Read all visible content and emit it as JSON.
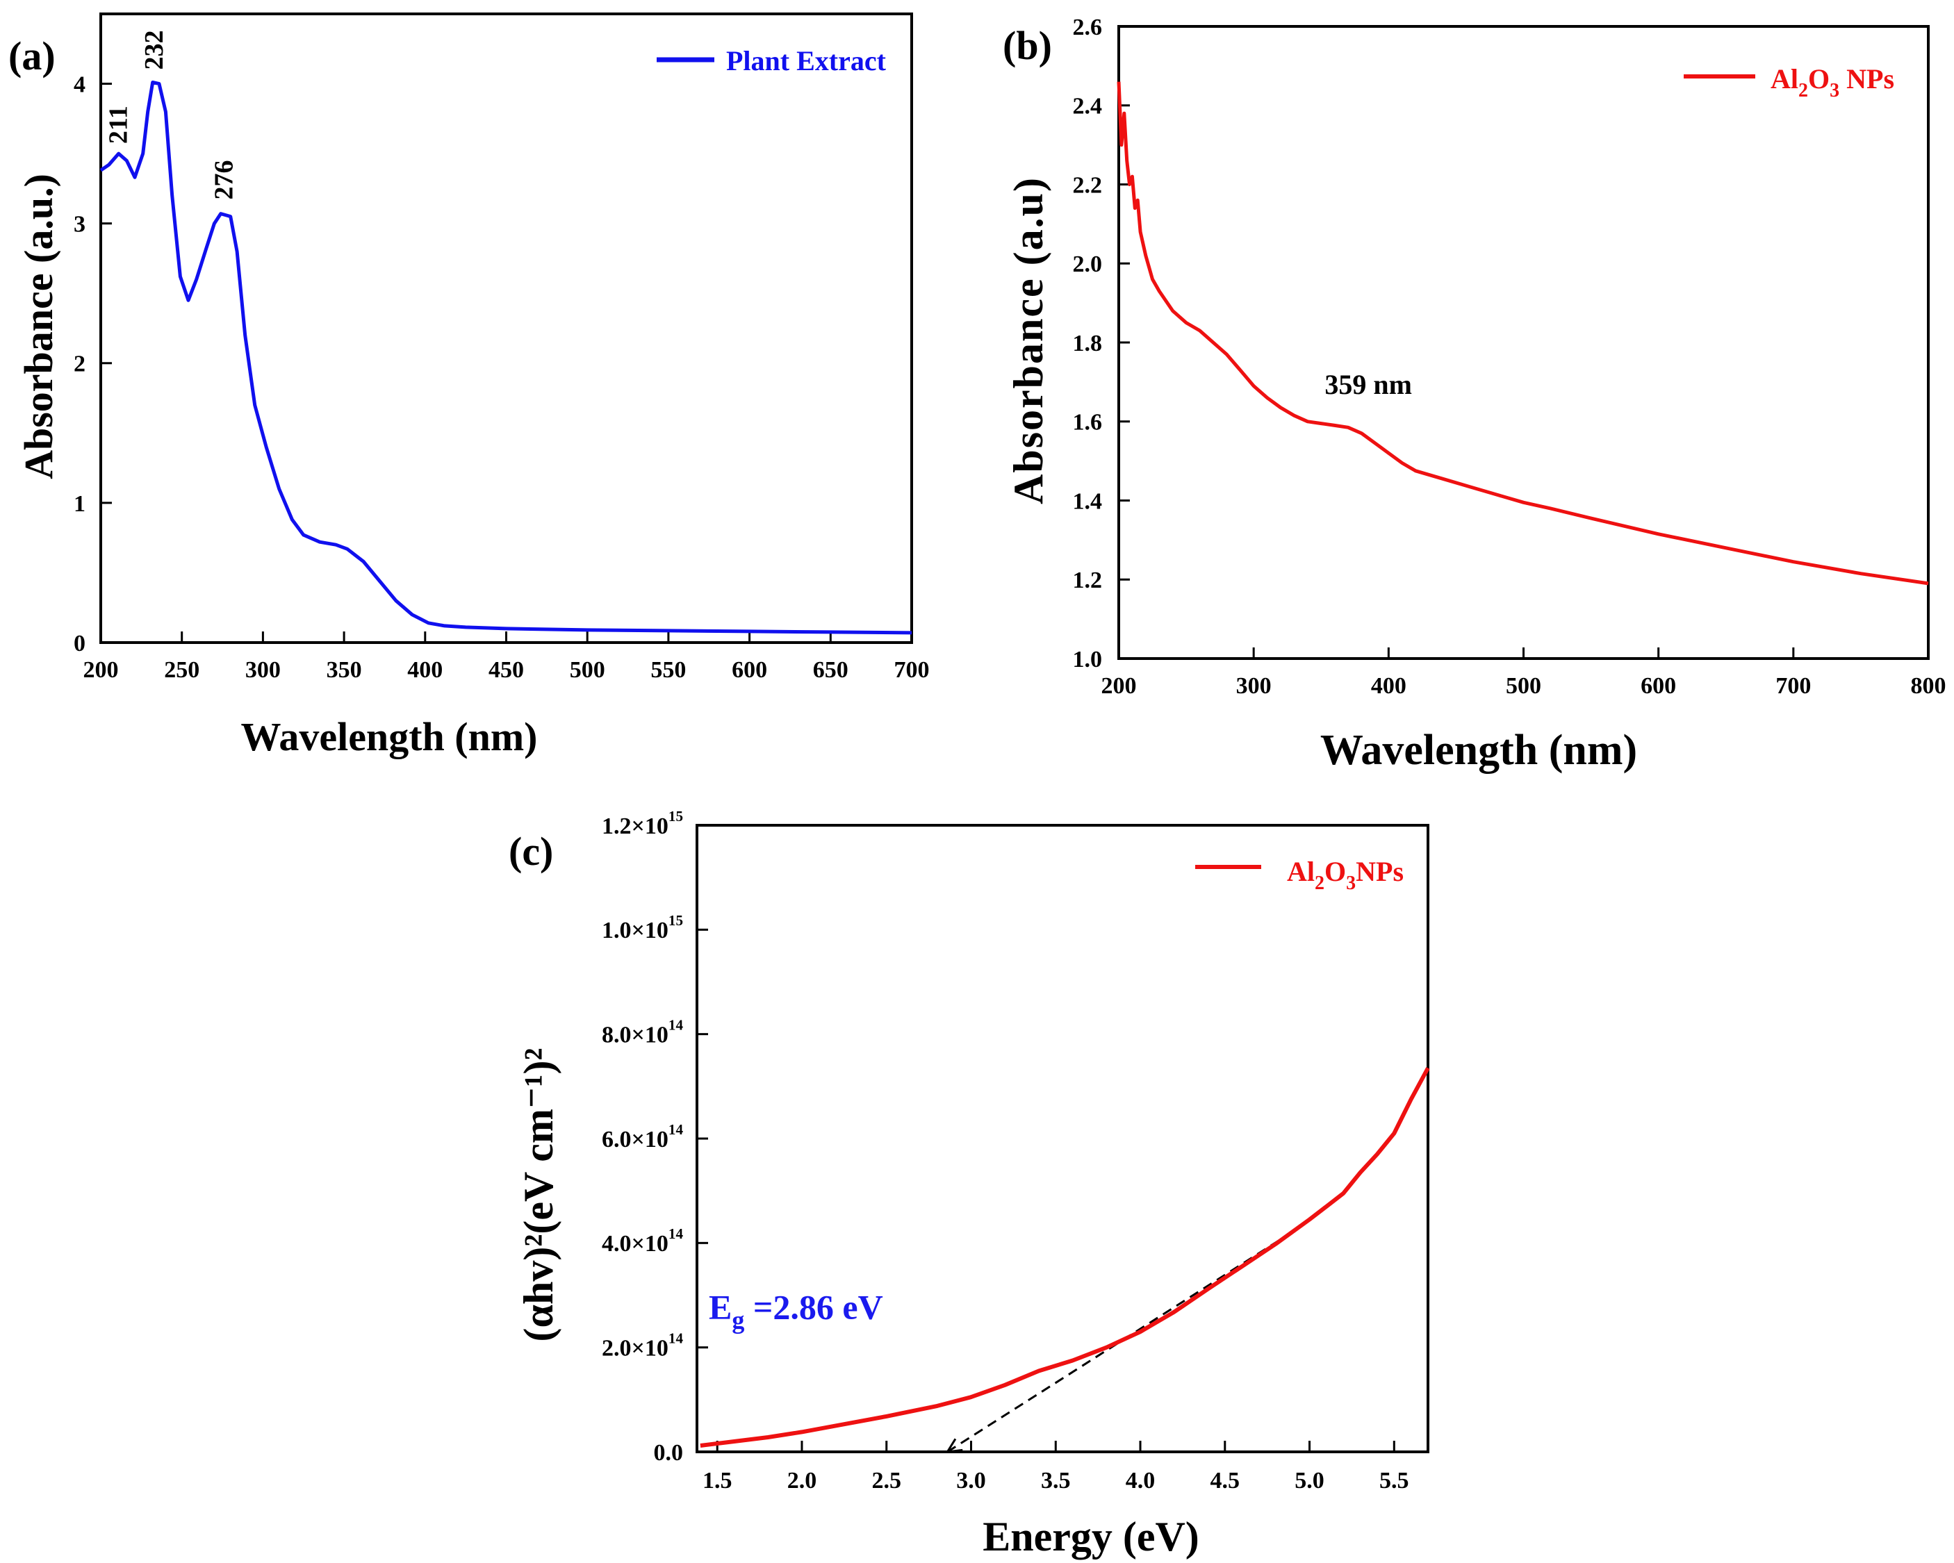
{
  "chart_data": [
    {
      "id": "a",
      "type": "line",
      "panel_label": "(a)",
      "xlabel": "Wavelength (nm)",
      "ylabel": "Absorbance (a.u.)",
      "xlim": [
        200,
        700
      ],
      "ylim": [
        0,
        4.5
      ],
      "x_ticks": [
        200,
        250,
        300,
        350,
        400,
        450,
        500,
        550,
        600,
        650,
        700
      ],
      "y_ticks": [
        0,
        1,
        2,
        3,
        4
      ],
      "y_tick_labels": [
        "0",
        "1",
        "2",
        "3",
        "4"
      ],
      "legend": "top-right",
      "series": [
        {
          "name": "Plant Extract",
          "color": "#1010ee",
          "points": [
            [
              200,
              3.38
            ],
            [
              205,
              3.42
            ],
            [
              211,
              3.5
            ],
            [
              216,
              3.45
            ],
            [
              221,
              3.33
            ],
            [
              226,
              3.5
            ],
            [
              229,
              3.8
            ],
            [
              232,
              4.01
            ],
            [
              236,
              4.0
            ],
            [
              240,
              3.8
            ],
            [
              244,
              3.2
            ],
            [
              249,
              2.62
            ],
            [
              254,
              2.45
            ],
            [
              259,
              2.6
            ],
            [
              265,
              2.82
            ],
            [
              270,
              3.0
            ],
            [
              274,
              3.07
            ],
            [
              280,
              3.05
            ],
            [
              284,
              2.8
            ],
            [
              289,
              2.2
            ],
            [
              295,
              1.7
            ],
            [
              302,
              1.4
            ],
            [
              310,
              1.1
            ],
            [
              318,
              0.88
            ],
            [
              325,
              0.77
            ],
            [
              335,
              0.72
            ],
            [
              345,
              0.7
            ],
            [
              352,
              0.67
            ],
            [
              362,
              0.58
            ],
            [
              372,
              0.44
            ],
            [
              382,
              0.3
            ],
            [
              392,
              0.2
            ],
            [
              402,
              0.14
            ],
            [
              412,
              0.12
            ],
            [
              425,
              0.11
            ],
            [
              450,
              0.1
            ],
            [
              500,
              0.09
            ],
            [
              550,
              0.085
            ],
            [
              600,
              0.08
            ],
            [
              650,
              0.075
            ],
            [
              700,
              0.07
            ]
          ]
        }
      ],
      "annotations": [
        {
          "text": "211",
          "x": 211,
          "y": 3.52
        },
        {
          "text": "232",
          "x": 233,
          "y": 4.05
        },
        {
          "text": "276",
          "x": 276,
          "y": 3.12
        }
      ]
    },
    {
      "id": "b",
      "type": "line",
      "panel_label": "(b)",
      "xlabel": "Wavelength (nm)",
      "ylabel": "Absorbance (a.u)",
      "xlim": [
        200,
        800
      ],
      "ylim": [
        1.0,
        2.6
      ],
      "x_ticks": [
        200,
        300,
        400,
        500,
        600,
        700,
        800
      ],
      "y_ticks": [
        1.0,
        1.2,
        1.4,
        1.6,
        1.8,
        2.0,
        2.2,
        2.4,
        2.6
      ],
      "y_tick_labels": [
        "1.0",
        "1.2",
        "1.4",
        "1.6",
        "1.8",
        "2.0",
        "2.2",
        "2.4",
        "2.6"
      ],
      "legend": "top-right",
      "series": [
        {
          "name": "Al2O3 NPs",
          "label_parts": [
            "Al",
            "2",
            "O",
            "3",
            " NPs"
          ],
          "color": "#ee1111",
          "points": [
            [
              200,
              2.46
            ],
            [
              202,
              2.3
            ],
            [
              204,
              2.38
            ],
            [
              206,
              2.26
            ],
            [
              208,
              2.2
            ],
            [
              210,
              2.22
            ],
            [
              212,
              2.14
            ],
            [
              214,
              2.16
            ],
            [
              216,
              2.08
            ],
            [
              220,
              2.02
            ],
            [
              225,
              1.96
            ],
            [
              230,
              1.93
            ],
            [
              240,
              1.88
            ],
            [
              250,
              1.85
            ],
            [
              260,
              1.83
            ],
            [
              270,
              1.8
            ],
            [
              280,
              1.77
            ],
            [
              290,
              1.73
            ],
            [
              300,
              1.69
            ],
            [
              310,
              1.66
            ],
            [
              320,
              1.635
            ],
            [
              330,
              1.615
            ],
            [
              340,
              1.6
            ],
            [
              350,
              1.595
            ],
            [
              360,
              1.59
            ],
            [
              370,
              1.585
            ],
            [
              380,
              1.57
            ],
            [
              390,
              1.545
            ],
            [
              400,
              1.52
            ],
            [
              410,
              1.495
            ],
            [
              420,
              1.475
            ],
            [
              440,
              1.455
            ],
            [
              460,
              1.435
            ],
            [
              480,
              1.415
            ],
            [
              500,
              1.395
            ],
            [
              520,
              1.38
            ],
            [
              550,
              1.355
            ],
            [
              600,
              1.315
            ],
            [
              650,
              1.28
            ],
            [
              700,
              1.245
            ],
            [
              750,
              1.215
            ],
            [
              800,
              1.19
            ]
          ]
        }
      ],
      "annotations": [
        {
          "text": "359 nm",
          "x": 385,
          "y": 1.67
        }
      ]
    },
    {
      "id": "c",
      "type": "line",
      "panel_label": "(c)",
      "xlabel": "Energy (eV)",
      "ylabel": "(αhv)²(eV cm⁻¹)²",
      "xlim": [
        1.38,
        5.7
      ],
      "ylim": [
        0,
        1200000000000000.0
      ],
      "x_ticks": [
        1.5,
        2.0,
        2.5,
        3.0,
        3.5,
        4.0,
        4.5,
        5.0,
        5.5
      ],
      "x_tick_labels": [
        "1.5",
        "2.0",
        "2.5",
        "3.0",
        "3.5",
        "4.0",
        "4.5",
        "5.0",
        "5.5"
      ],
      "y_ticks": [
        0,
        200000000000000.0,
        400000000000000.0,
        600000000000000.0,
        800000000000000.0,
        1000000000000000.0,
        1200000000000000.0
      ],
      "y_tick_labels": [
        {
          "mant": "0.0",
          "exp": ""
        },
        {
          "mant": "2.0×10",
          "exp": "14"
        },
        {
          "mant": "4.0×10",
          "exp": "14"
        },
        {
          "mant": "6.0×10",
          "exp": "14"
        },
        {
          "mant": "8.0×10",
          "exp": "14"
        },
        {
          "mant": "1.0×10",
          "exp": "15"
        },
        {
          "mant": "1.2×10",
          "exp": "15"
        }
      ],
      "legend": "top-right",
      "series": [
        {
          "name": "Al2O3NPs",
          "label_parts": [
            "Al",
            "2",
            "O",
            "3",
            "NPs"
          ],
          "color": "#ee1111",
          "points": [
            [
              1.4,
              12000000000000.0
            ],
            [
              1.6,
              20000000000000.0
            ],
            [
              1.8,
              28000000000000.0
            ],
            [
              2.0,
              38000000000000.0
            ],
            [
              2.2,
              50000000000000.0
            ],
            [
              2.5,
              68000000000000.0
            ],
            [
              2.8,
              88000000000000.0
            ],
            [
              3.0,
              105000000000000.0
            ],
            [
              3.2,
              128000000000000.0
            ],
            [
              3.4,
              155000000000000.0
            ],
            [
              3.6,
              175000000000000.0
            ],
            [
              3.8,
              200000000000000.0
            ],
            [
              4.0,
              230000000000000.0
            ],
            [
              4.2,
              268000000000000.0
            ],
            [
              4.4,
              312000000000000.0
            ],
            [
              4.6,
              355000000000000.0
            ],
            [
              4.8,
              398000000000000.0
            ],
            [
              5.0,
              445000000000000.0
            ],
            [
              5.1,
              470000000000000.0
            ],
            [
              5.2,
              495000000000000.0
            ],
            [
              5.3,
              535000000000000.0
            ],
            [
              5.4,
              570000000000000.0
            ],
            [
              5.5,
              610000000000000.0
            ],
            [
              5.6,
              675000000000000.0
            ],
            [
              5.7,
              735000000000000.0
            ]
          ]
        }
      ],
      "fit_line": {
        "x": [
          2.86,
          4.82
        ],
        "y": [
          0,
          405000000000000.0
        ],
        "style": "dashed",
        "color": "#000000"
      },
      "annotations": [
        {
          "text_main": "E",
          "text_sub": "g",
          "text_rest": " =2.86 eV",
          "x": 1.45,
          "y": 255000000000000.0,
          "color": "#1a1aee"
        }
      ]
    }
  ]
}
